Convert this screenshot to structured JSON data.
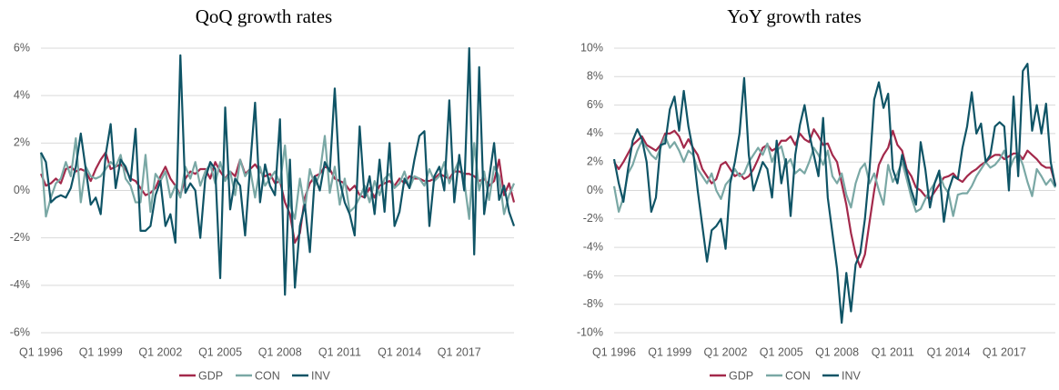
{
  "chart_data": [
    {
      "type": "line",
      "title": "QoQ growth rates",
      "categories": [
        "Q1 1996",
        null,
        null,
        null,
        null,
        null,
        null,
        null,
        null,
        null,
        null,
        null,
        "Q1 1999",
        null,
        null,
        null,
        null,
        null,
        null,
        null,
        null,
        null,
        null,
        null,
        "Q1 2002",
        null,
        null,
        null,
        null,
        null,
        null,
        null,
        null,
        null,
        null,
        null,
        "Q1 2005",
        null,
        null,
        null,
        null,
        null,
        null,
        null,
        null,
        null,
        null,
        null,
        "Q1 2008",
        null,
        null,
        null,
        null,
        null,
        null,
        null,
        null,
        null,
        null,
        null,
        "Q1 2011",
        null,
        null,
        null,
        null,
        null,
        null,
        null,
        null,
        null,
        null,
        null,
        "Q1 2014",
        null,
        null,
        null,
        null,
        null,
        null,
        null,
        null,
        null,
        null,
        null,
        "Q1 2017",
        null,
        null,
        null,
        null,
        null,
        null,
        null,
        null,
        null,
        null,
        null
      ],
      "series": [
        {
          "name": "GDP",
          "color": "#a3294b",
          "values": [
            0.7,
            0.2,
            0.3,
            0.5,
            0.3,
            0.9,
            1.0,
            0.8,
            0.9,
            0.8,
            0.4,
            0.9,
            1.3,
            1.6,
            0.9,
            1.0,
            1.1,
            0.9,
            0.5,
            0.4,
            0.1,
            -0.2,
            -0.1,
            0.1,
            0.6,
            1.0,
            0.5,
            0.2,
            -0.2,
            0.5,
            0.8,
            0.7,
            0.9,
            0.9,
            0.5,
            1.2,
            0.8,
            0.5,
            0.8,
            0.6,
            1.3,
            0.7,
            0.9,
            1.1,
            0.8,
            0.6,
            0.7,
            0.3,
            0.4,
            -0.5,
            -1.0,
            -2.2,
            -1.8,
            -0.3,
            0.3,
            0.6,
            0.7,
            1.0,
            0.9,
            0.5,
            0.4,
            0.3,
            0.0,
            0.2,
            -0.2,
            -0.3,
            0.1,
            -0.3,
            0.2,
            0.3,
            0.4,
            0.2,
            0.5,
            0.3,
            0.6,
            0.5,
            0.5,
            0.4,
            0.4,
            0.5,
            0.7,
            0.6,
            0.5,
            0.8,
            0.8,
            0.7,
            0.7,
            0.6,
            0.4,
            0.5,
            0.2,
            0.4,
            1.3,
            -0.2,
            0.3,
            -0.5
          ]
        },
        {
          "name": "CON",
          "color": "#7aa8a5",
          "values": [
            1.6,
            -1.1,
            -0.3,
            0.3,
            0.5,
            1.2,
            0.6,
            2.2,
            -0.5,
            1.0,
            0.6,
            0.5,
            0.6,
            0.9,
            1.2,
            1.0,
            1.5,
            0.5,
            0.2,
            -0.5,
            -0.5,
            1.5,
            -0.9,
            0.7,
            0.4,
            0.8,
            -0.3,
            0.2,
            -0.3,
            1.0,
            0.5,
            1.2,
            0.2,
            0.8,
            1.1,
            0.3,
            1.2,
            0.4,
            0.8,
            -0.2,
            1.3,
            0.6,
            0.9,
            -0.3,
            1.0,
            0.2,
            0.5,
            0.8,
            0.3,
            1.9,
            -0.6,
            -1.2,
            0.5,
            -0.8,
            0.9,
            0.2,
            0.7,
            2.3,
            -0.1,
            1.0,
            -0.6,
            0.5,
            -0.9,
            -0.7,
            -0.3,
            0.2,
            -0.5,
            0.4,
            -0.2,
            0.5,
            0.7,
            0.1,
            0.3,
            0.8,
            0.1,
            0.6,
            0.5,
            0.2,
            0.9,
            0.4,
            0.6,
            1.2,
            0.3,
            0.8,
            1.3,
            0.4,
            -1.2,
            2.0,
            0.0,
            0.8,
            -0.4,
            1.0,
            0.6,
            -1.0,
            -0.2,
            0.3
          ]
        },
        {
          "name": "INV",
          "color": "#0f5466",
          "values": [
            1.6,
            1.2,
            -0.5,
            -0.3,
            -0.2,
            -0.3,
            0.1,
            1.0,
            2.4,
            0.9,
            -0.6,
            -0.3,
            -1.0,
            1.5,
            2.8,
            0.1,
            1.3,
            1.0,
            0.4,
            2.6,
            -1.7,
            -1.7,
            -1.5,
            -0.2,
            0.4,
            -1.5,
            -1.0,
            -2.2,
            5.7,
            -0.1,
            0.3,
            0.0,
            -2.0,
            0.5,
            1.2,
            0.9,
            -3.7,
            3.5,
            -0.8,
            0.5,
            0.2,
            -1.9,
            1.0,
            3.7,
            -0.5,
            1.1,
            0.2,
            -0.2,
            3.0,
            -4.4,
            1.3,
            -4.1,
            -1.5,
            -0.6,
            -2.6,
            0.6,
            0.0,
            1.2,
            0.8,
            4.3,
            0.4,
            -0.5,
            -1.0,
            -1.9,
            2.7,
            -0.3,
            0.6,
            -1.0,
            1.3,
            -0.9,
            2.0,
            -1.5,
            -0.9,
            0.5,
            0.1,
            1.3,
            2.3,
            2.5,
            -1.5,
            0.6,
            1.0,
            0.0,
            3.8,
            -0.5,
            1.5,
            0.0,
            6.0,
            -2.7,
            5.2,
            -1.0,
            0.5,
            2.0,
            -0.4,
            0.2,
            -0.9,
            -1.5
          ]
        }
      ],
      "ylim": [
        -6,
        6
      ],
      "yticks": [
        {
          "value": -6,
          "label": "-6%"
        },
        {
          "value": -4,
          "label": "-4%"
        },
        {
          "value": -2,
          "label": "-2%"
        },
        {
          "value": 0,
          "label": "0%"
        },
        {
          "value": 2,
          "label": "2%"
        },
        {
          "value": 4,
          "label": "4%"
        },
        {
          "value": 6,
          "label": "6%"
        }
      ],
      "grid": true,
      "legend": "bottom"
    },
    {
      "type": "line",
      "title": "YoY growth rates",
      "categories": [
        "Q1 1996",
        null,
        null,
        null,
        null,
        null,
        null,
        null,
        null,
        null,
        null,
        null,
        "Q1 1999",
        null,
        null,
        null,
        null,
        null,
        null,
        null,
        null,
        null,
        null,
        null,
        "Q1 2002",
        null,
        null,
        null,
        null,
        null,
        null,
        null,
        null,
        null,
        null,
        null,
        "Q1 2005",
        null,
        null,
        null,
        null,
        null,
        null,
        null,
        null,
        null,
        null,
        null,
        "Q1 2008",
        null,
        null,
        null,
        null,
        null,
        null,
        null,
        null,
        null,
        null,
        null,
        "Q1 2011",
        null,
        null,
        null,
        null,
        null,
        null,
        null,
        null,
        null,
        null,
        null,
        "Q1 2014",
        null,
        null,
        null,
        null,
        null,
        null,
        null,
        null,
        null,
        null,
        null,
        "Q1 2017",
        null,
        null,
        null,
        null,
        null,
        null,
        null,
        null,
        null,
        null,
        null
      ],
      "series": [
        {
          "name": "GDP",
          "color": "#a3294b",
          "values": [
            2.0,
            1.5,
            2.0,
            2.6,
            3.2,
            3.5,
            3.8,
            3.2,
            3.0,
            2.8,
            3.2,
            4.0,
            4.0,
            4.2,
            3.8,
            3.0,
            3.6,
            3.0,
            2.5,
            1.5,
            1.0,
            0.5,
            0.8,
            1.8,
            2.0,
            1.5,
            1.0,
            1.2,
            0.8,
            1.0,
            1.5,
            2.2,
            3.0,
            3.2,
            2.8,
            3.0,
            3.5,
            3.5,
            3.8,
            3.2,
            4.0,
            3.6,
            3.4,
            4.3,
            3.8,
            3.2,
            3.3,
            2.5,
            2.0,
            0.5,
            -1.0,
            -3.0,
            -4.5,
            -5.4,
            -4.5,
            -2.2,
            0.0,
            1.8,
            2.5,
            3.0,
            4.2,
            3.2,
            2.8,
            1.5,
            1.0,
            0.2,
            0.0,
            -0.4,
            -0.6,
            -0.1,
            0.4,
            0.9,
            1.0,
            1.2,
            0.8,
            0.6,
            1.0,
            1.3,
            1.5,
            1.8,
            2.0,
            2.3,
            2.5,
            2.5,
            2.2,
            2.4,
            2.6,
            2.6,
            2.2,
            2.8,
            2.5,
            2.2,
            1.8,
            1.6,
            1.6,
            0.4
          ]
        },
        {
          "name": "CON",
          "color": "#7aa8a5",
          "values": [
            0.3,
            -1.5,
            -0.5,
            1.2,
            1.8,
            2.8,
            3.5,
            3.0,
            2.5,
            2.2,
            3.0,
            3.8,
            3.0,
            3.4,
            2.8,
            2.0,
            2.8,
            2.5,
            1.5,
            1.0,
            0.5,
            1.2,
            0.0,
            -0.6,
            0.4,
            0.8,
            1.5,
            1.0,
            1.2,
            2.0,
            2.5,
            3.0,
            2.5,
            3.3,
            2.0,
            2.8,
            3.1,
            1.8,
            2.2,
            1.2,
            1.5,
            1.2,
            2.0,
            3.0,
            2.5,
            1.8,
            2.8,
            1.0,
            0.5,
            1.2,
            -0.3,
            -1.2,
            0.5,
            1.5,
            1.9,
            0.5,
            1.2,
            0.0,
            -1.0,
            1.8,
            0.6,
            1.2,
            2.0,
            0.8,
            -0.5,
            -1.5,
            -1.3,
            -0.6,
            0.0,
            0.5,
            1.2,
            0.3,
            -0.2,
            -1.8,
            -0.3,
            -0.2,
            -0.2,
            0.3,
            1.0,
            1.5,
            2.0,
            1.6,
            1.8,
            2.2,
            2.8,
            1.4,
            2.2,
            2.6,
            1.8,
            0.6,
            -0.4,
            1.5,
            1.0,
            0.4,
            0.8,
            0.2
          ]
        },
        {
          "name": "INV",
          "color": "#0f5466",
          "values": [
            2.2,
            0.5,
            -0.8,
            1.5,
            3.5,
            4.3,
            3.6,
            2.0,
            -1.5,
            -0.5,
            3.2,
            3.3,
            5.7,
            6.6,
            4.2,
            7.0,
            4.5,
            2.8,
            0.0,
            -2.5,
            -5.0,
            -2.8,
            -2.5,
            -2.0,
            -4.1,
            0.5,
            2.0,
            4.0,
            7.9,
            2.5,
            0.0,
            1.0,
            2.0,
            1.5,
            -0.5,
            3.5,
            0.5,
            2.2,
            -1.8,
            2.5,
            4.6,
            6.0,
            4.0,
            2.5,
            1.0,
            5.1,
            -0.5,
            -3.0,
            -5.5,
            -9.3,
            -5.8,
            -8.5,
            -5.2,
            -4.4,
            -2.0,
            1.5,
            6.4,
            7.6,
            5.8,
            6.8,
            1.5,
            0.5,
            2.5,
            1.3,
            0.0,
            -1.0,
            3.4,
            1.5,
            -1.2,
            0.5,
            1.4,
            -2.2,
            0.0,
            1.0,
            0.8,
            3.0,
            4.5,
            6.9,
            4.0,
            4.7,
            2.0,
            2.5,
            4.5,
            4.8,
            4.5,
            0.0,
            6.6,
            1.0,
            8.4,
            8.9,
            4.2,
            6.0,
            4.0,
            6.1,
            2.0,
            0.3
          ]
        }
      ],
      "ylim": [
        -10,
        10
      ],
      "yticks": [
        {
          "value": -10,
          "label": "-10%"
        },
        {
          "value": -8,
          "label": "-8%"
        },
        {
          "value": -6,
          "label": "-6%"
        },
        {
          "value": -4,
          "label": "-4%"
        },
        {
          "value": -2,
          "label": "-2%"
        },
        {
          "value": 0,
          "label": "0%"
        },
        {
          "value": 2,
          "label": "2%"
        },
        {
          "value": 4,
          "label": "4%"
        },
        {
          "value": 6,
          "label": "6%"
        },
        {
          "value": 8,
          "label": "8%"
        },
        {
          "value": 10,
          "label": "10%"
        }
      ],
      "grid": true,
      "legend": "bottom"
    }
  ]
}
